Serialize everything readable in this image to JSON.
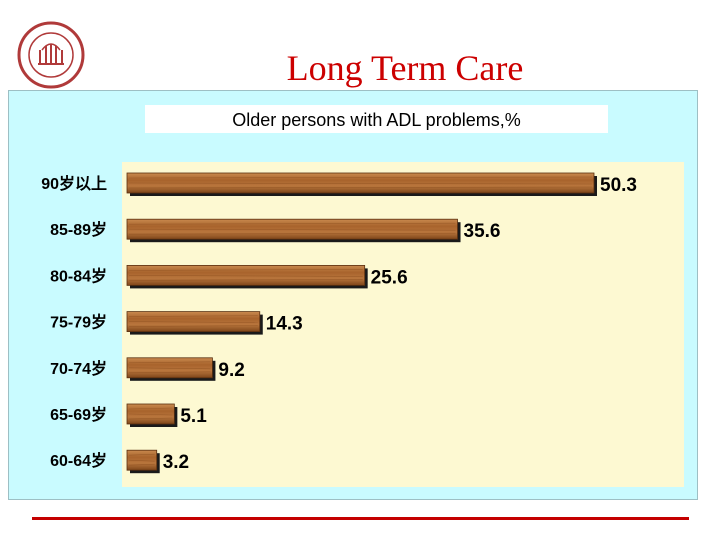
{
  "slide": {
    "title": "Long Term Care",
    "title_color": "#cc0000",
    "panel_color": "#c9fbff",
    "plot_color": "#fdf9d2",
    "rule_color": "#c40000"
  },
  "logo": {
    "icon": "university-seal-icon",
    "color": "#b03a3a"
  },
  "chart_data": {
    "type": "bar",
    "orientation": "horizontal",
    "title": "Older persons with ADL problems,%",
    "categories": [
      "90岁以上",
      "85-89岁",
      "80-84岁",
      "75-79岁",
      "70-74岁",
      "65-69岁",
      "60-64岁"
    ],
    "values": [
      50.3,
      35.6,
      25.6,
      14.3,
      9.2,
      5.1,
      3.2
    ],
    "data_labels": [
      "50.3",
      "35.6",
      "25.6",
      "14.3",
      "9.2",
      "5.1",
      "3.2"
    ],
    "xlim": [
      0,
      50.3
    ],
    "grid": false,
    "legend": "none",
    "bar_color": "#a0602a"
  }
}
